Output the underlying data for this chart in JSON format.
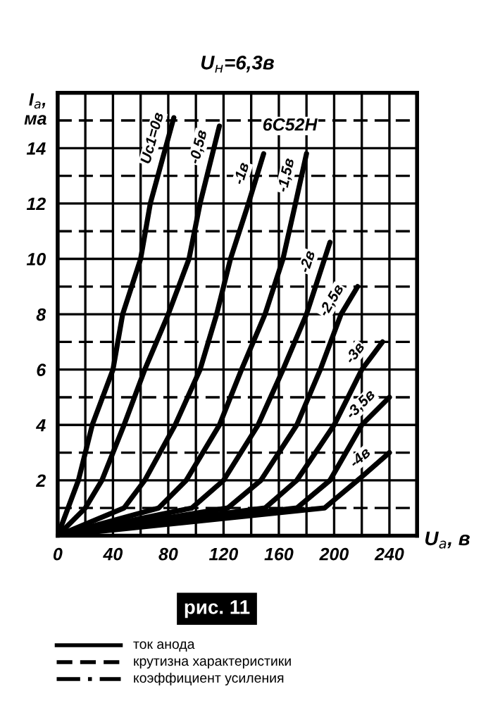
{
  "chart_data": {
    "type": "line",
    "title": "U$_{н}$=6,3в",
    "xlabel": "U$_{а}$, в",
    "ylabel": "I$_{а}$,\nма",
    "xlim": [
      0,
      260
    ],
    "ylim": [
      0,
      16
    ],
    "xticks": [
      0,
      {
        "value": 20,
        "label": null
      },
      40,
      {
        "value": 60,
        "label": null
      },
      80,
      {
        "value": 100,
        "label": null
      },
      120,
      {
        "value": 140,
        "label": null
      },
      160,
      {
        "value": 180,
        "label": null
      },
      200,
      {
        "value": 220,
        "label": null
      },
      240,
      {
        "value": 260,
        "label": null
      }
    ],
    "yticks": [
      {
        "value": 1,
        "label": null
      },
      2,
      {
        "value": 3,
        "label": null
      },
      4,
      {
        "value": 5,
        "label": null
      },
      6,
      {
        "value": 7,
        "label": null
      },
      8,
      {
        "value": 9,
        "label": null
      },
      10,
      {
        "value": 11,
        "label": null
      },
      12,
      {
        "value": 13,
        "label": null
      },
      14,
      {
        "value": 15,
        "label": null
      },
      {
        "value": 16,
        "label": null
      }
    ],
    "grid": true,
    "line_style": "solid",
    "marker": "none",
    "series": [
      {
        "name": "Uс1=0в",
        "color": "#000000",
        "x": [
          0,
          15,
          25,
          40,
          47,
          60,
          67,
          84
        ],
        "values": [
          0,
          2,
          4,
          6,
          8,
          10,
          12,
          15.1
        ]
      },
      {
        "name": "-0,5в",
        "color": "#000000",
        "x": [
          0,
          20,
          32,
          48,
          63,
          80,
          95,
          103,
          117
        ],
        "values": [
          0,
          1,
          2,
          4,
          6,
          8,
          10,
          12,
          14.8
        ]
      },
      {
        "name": "-1в",
        "color": "#000000",
        "x": [
          0,
          48,
          63,
          85,
          103,
          115,
          125,
          138,
          149
        ],
        "values": [
          0,
          1,
          2,
          4,
          6,
          8,
          10,
          12,
          13.8
        ]
      },
      {
        "name": "-1,5в",
        "color": "#000000",
        "x": [
          0,
          73,
          93,
          117,
          133,
          150,
          163,
          172,
          180
        ],
        "values": [
          0,
          1,
          2,
          4,
          6,
          8,
          10,
          12,
          13.8
        ]
      },
      {
        "name": "-2в",
        "color": "#000000",
        "x": [
          0,
          97,
          120,
          145,
          163,
          180,
          197
        ],
        "values": [
          0,
          1,
          2,
          4,
          6,
          8,
          10.6
        ]
      },
      {
        "name": "-2,5в",
        "color": "#000000",
        "x": [
          0,
          123,
          147,
          173,
          190,
          205,
          217
        ],
        "values": [
          0,
          1,
          2,
          4,
          6,
          8,
          9
        ]
      },
      {
        "name": "-3в",
        "color": "#000000",
        "x": [
          0,
          150,
          173,
          200,
          220,
          235
        ],
        "values": [
          0,
          1,
          2,
          4,
          6,
          7
        ]
      },
      {
        "name": "-3,5в",
        "color": "#000000",
        "x": [
          0,
          173,
          197,
          220,
          240
        ],
        "values": [
          0,
          1,
          2,
          4,
          5
        ]
      },
      {
        "name": "-4в",
        "color": "#000000",
        "x": [
          0,
          193,
          217,
          240
        ],
        "values": [
          0,
          1,
          2,
          3
        ]
      }
    ],
    "annotations": [
      {
        "text": "6С52Н",
        "x": 168,
        "y": 14.8
      },
      "рис. 11",
      "ток анода",
      "крутизна характеристики",
      "коэффициент усиления"
    ]
  }
}
